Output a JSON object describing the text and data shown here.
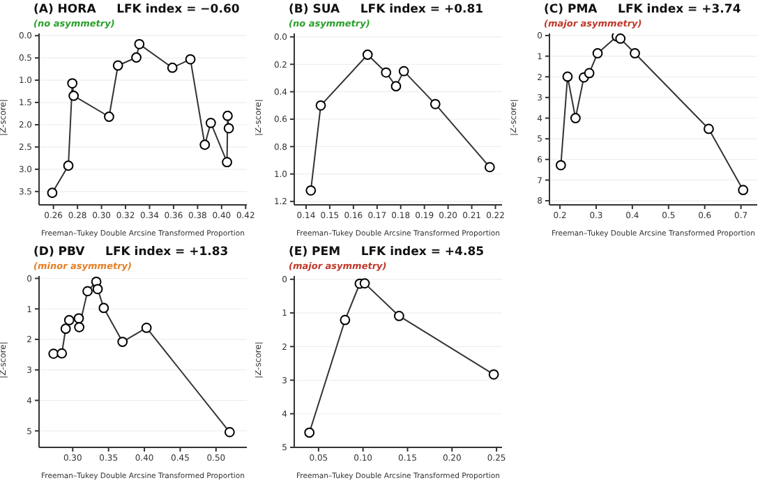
{
  "chart_data": [
    {
      "type": "line",
      "title": "(A) HORA     LFK index = −0.60",
      "subtitle": "(no asymmetry)",
      "xlabel": "Freeman–Tukey Double Arcsine Transformed Proportion",
      "ylabel": "|Z-score|",
      "color": "#333333",
      "marker": "circle",
      "grid": "y",
      "x": [
        0.259,
        0.2724,
        0.2757,
        0.2768,
        0.3063,
        0.3137,
        0.329,
        0.3315,
        0.359,
        0.374,
        0.386,
        0.391,
        0.4045,
        0.405,
        0.406
      ],
      "values": [
        3.53,
        2.92,
        1.07,
        1.35,
        1.82,
        0.67,
        0.49,
        0.19,
        0.72,
        0.53,
        2.45,
        1.96,
        2.84,
        1.8,
        2.08
      ],
      "xlim": [
        0.248,
        0.421
      ],
      "ylim": [
        3.8,
        -0.05
      ],
      "xticks": [
        0.26,
        0.28,
        {
          "value": 0.3,
          "label": "0.30"
        },
        0.32,
        0.34,
        0.36,
        0.38,
        {
          "value": 0.4,
          "label": "0.40"
        },
        0.42
      ],
      "yticks": [
        {
          "value": 0,
          "label": "0.0"
        },
        0.5,
        {
          "value": 1,
          "label": "1.0"
        },
        1.5,
        {
          "value": 2,
          "label": "2.0"
        },
        2.5,
        {
          "value": 3,
          "label": "3.0"
        },
        3.5
      ]
    },
    {
      "type": "line",
      "title": "(B) SUA     LFK index = +0.81",
      "subtitle": "(no asymmetry)",
      "xlabel": "Freeman–Tukey Double Arcsine Transformed Proportion",
      "ylabel": "|Z-score|",
      "color": "#333333",
      "marker": "circle",
      "grid": "y",
      "x": [
        0.142,
        0.1462,
        0.166,
        0.1738,
        0.178,
        0.1813,
        0.1946,
        0.2176
      ],
      "values": [
        1.12,
        0.5,
        0.13,
        0.26,
        0.36,
        0.25,
        0.49,
        0.95
      ],
      "xlim": [
        0.135,
        0.2228
      ],
      "ylim": [
        1.225,
        -0.025
      ],
      "xticks": [
        0.14,
        0.15,
        0.16,
        0.17,
        0.18,
        0.19,
        {
          "value": 0.2,
          "label": "0.20"
        },
        0.21,
        0.22
      ],
      "yticks": [
        {
          "value": 0,
          "label": "0.0"
        },
        0.2,
        0.4,
        0.6,
        0.8,
        {
          "value": 1,
          "label": "1.0"
        },
        1.2
      ]
    },
    {
      "type": "line",
      "title": "(C) PMA     LFK index = +3.74",
      "subtitle": "(major asymmetry)",
      "xlabel": "Freeman–Tukey Double Arcsine Transformed Proportion",
      "ylabel": "|Z-score|",
      "color": "#333333",
      "marker": "circle",
      "grid": "y",
      "x": [
        0.2025,
        0.221,
        0.243,
        0.266,
        0.281,
        0.304,
        0.357,
        0.367,
        0.407,
        0.611,
        0.706
      ],
      "values": [
        6.28,
        1.99,
        4.0,
        2.03,
        1.82,
        0.86,
        0.04,
        0.15,
        0.86,
        4.52,
        7.48
      ],
      "xlim": [
        0.171,
        0.745
      ],
      "ylim": [
        8.2,
        -0.1
      ],
      "xticks": [
        0.2,
        0.3,
        0.4,
        0.5,
        0.6,
        0.7
      ],
      "yticks": [
        0,
        1,
        2,
        3,
        4,
        5,
        6,
        7,
        8
      ]
    },
    {
      "type": "line",
      "title": "(D) PBV     LFK index = +1.83",
      "subtitle": "(minor asymmetry)",
      "xlabel": "Freeman–Tukey Double Arcsine Transformed Proportion",
      "ylabel": "|Z-score|",
      "color": "#333333",
      "marker": "circle",
      "grid": "y",
      "x": [
        0.2732,
        0.2848,
        0.2902,
        0.2951,
        0.3085,
        0.3091,
        0.3207,
        0.3329,
        0.3348,
        0.3433,
        0.3695,
        0.403,
        0.519
      ],
      "values": [
        2.47,
        2.46,
        1.65,
        1.37,
        1.31,
        1.6,
        0.42,
        0.11,
        0.35,
        0.97,
        2.08,
        1.62,
        5.04
      ],
      "xlim": [
        0.253,
        0.543
      ],
      "ylim": [
        5.54,
        -0.08
      ],
      "xticks": [
        {
          "value": 0.3,
          "label": "0.30"
        },
        0.35,
        {
          "value": 0.4,
          "label": "0.40"
        },
        0.45,
        {
          "value": 0.5,
          "label": "0.50"
        }
      ],
      "yticks": [
        0,
        1,
        2,
        3,
        4,
        5
      ]
    },
    {
      "type": "line",
      "title": "(E) PEM     LFK index = +4.85",
      "subtitle": "(major asymmetry)",
      "xlabel": "Freeman–Tukey Double Arcsine Transformed Proportion",
      "ylabel": "|Z-score|",
      "color": "#333333",
      "marker": "circle",
      "grid": "y",
      "x": [
        0.0397,
        0.0798,
        0.0963,
        0.1019,
        0.1405,
        0.2469
      ],
      "values": [
        4.56,
        1.21,
        0.13,
        0.12,
        1.09,
        2.83
      ],
      "xlim": [
        0.0227,
        0.2562
      ],
      "ylim": [
        5.0,
        -0.1
      ],
      "xticks": [
        0.05,
        {
          "value": 0.1,
          "label": "0.10"
        },
        0.15,
        {
          "value": 0.2,
          "label": "0.20"
        },
        0.25
      ],
      "yticks": [
        0,
        1,
        2,
        3,
        4,
        5
      ]
    }
  ]
}
